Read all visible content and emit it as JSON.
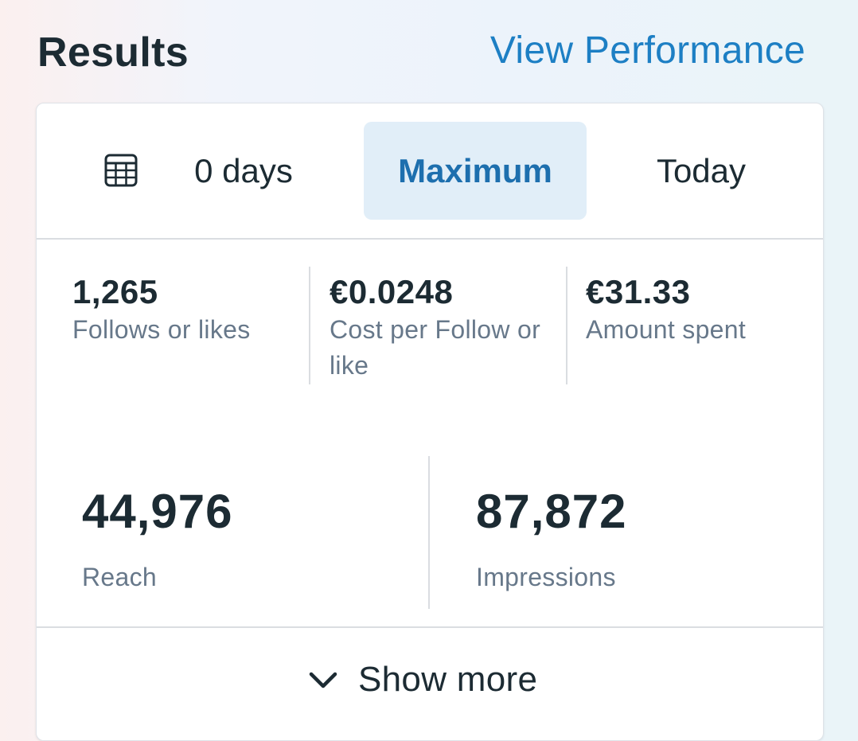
{
  "header": {
    "title": "Results",
    "link": "View Performance"
  },
  "tabs": {
    "calendar_icon": "calendar-icon",
    "items": [
      {
        "label": "0 days",
        "selected": false
      },
      {
        "label": "Maximum",
        "selected": true
      },
      {
        "label": "Today",
        "selected": false
      }
    ]
  },
  "metrics_top": [
    {
      "value": "1,265",
      "label": "Follows or likes"
    },
    {
      "value": "€0.0248",
      "label": "Cost per Follow or like"
    },
    {
      "value": "€31.33",
      "label": "Amount spent"
    }
  ],
  "metrics_bottom": [
    {
      "value": "44,976",
      "label": "Reach"
    },
    {
      "value": "87,872",
      "label": "Impressions"
    }
  ],
  "footer": {
    "icon": "chevron-down-icon",
    "label": "Show more"
  },
  "colors": {
    "accent": "#1d7fc4",
    "selected_tab_bg": "#e1eef8",
    "text_primary": "#1c2b33",
    "text_secondary": "#67788a"
  }
}
